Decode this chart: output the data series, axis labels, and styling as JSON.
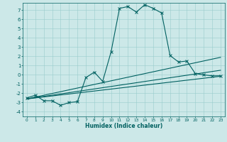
{
  "xlabel": "Humidex (Indice chaleur)",
  "xlim": [
    -0.5,
    23.5
  ],
  "ylim": [
    -4.5,
    7.8
  ],
  "xticks": [
    0,
    1,
    2,
    3,
    4,
    5,
    6,
    7,
    8,
    9,
    10,
    11,
    12,
    13,
    14,
    15,
    16,
    17,
    18,
    19,
    20,
    21,
    22,
    23
  ],
  "yticks": [
    -4,
    -3,
    -2,
    -1,
    0,
    1,
    2,
    3,
    4,
    5,
    6,
    7
  ],
  "bg_color": "#cce8e8",
  "grid_color": "#99cccc",
  "line_color": "#006060",
  "main_x": [
    0,
    1,
    2,
    3,
    4,
    5,
    6,
    7,
    8,
    9,
    10,
    11,
    12,
    13,
    14,
    15,
    16,
    17,
    18,
    19,
    20,
    21,
    22,
    23
  ],
  "main_y": [
    -2.5,
    -2.2,
    -2.8,
    -2.8,
    -3.3,
    -3.0,
    -2.9,
    -0.3,
    0.3,
    -0.7,
    2.5,
    7.2,
    7.4,
    6.8,
    7.6,
    7.2,
    6.7,
    2.1,
    1.4,
    1.5,
    0.15,
    0.0,
    -0.1,
    -0.1
  ],
  "trend_lines": [
    [
      0,
      -2.6,
      23,
      -0.15
    ],
    [
      0,
      -2.6,
      23,
      0.5
    ],
    [
      0,
      -2.6,
      23,
      1.9
    ]
  ]
}
